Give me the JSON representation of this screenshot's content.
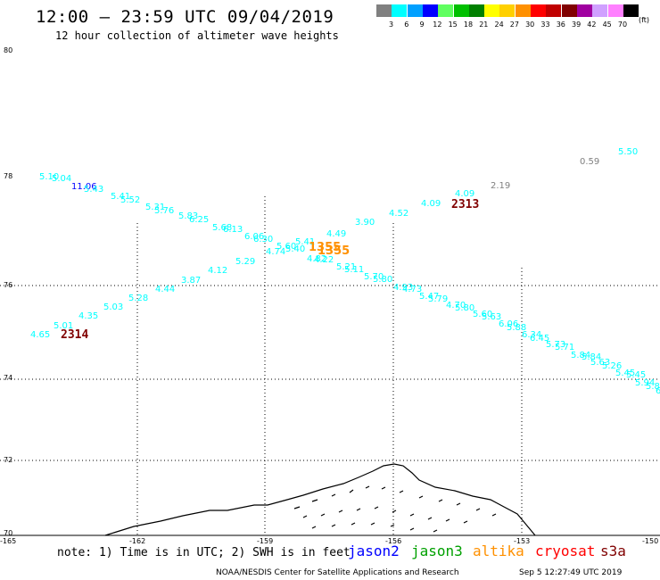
{
  "header": {
    "title": "12:00 – 23:59 UTC 09/04/2019",
    "subtitle": "12 hour collection of altimeter wave heights"
  },
  "colorbar": {
    "unit_label": "(ft)",
    "bins": [
      {
        "label": "3",
        "color": "#808080"
      },
      {
        "label": "6",
        "color": "#00ffff"
      },
      {
        "label": "9",
        "color": "#00a0ff"
      },
      {
        "label": "12",
        "color": "#0000ff"
      },
      {
        "label": "15",
        "color": "#60ff60"
      },
      {
        "label": "18",
        "color": "#00c000"
      },
      {
        "label": "21",
        "color": "#008000"
      },
      {
        "label": "24",
        "color": "#ffff00"
      },
      {
        "label": "27",
        "color": "#ffd000"
      },
      {
        "label": "30",
        "color": "#ff9000"
      },
      {
        "label": "33",
        "color": "#ff0000"
      },
      {
        "label": "36",
        "color": "#c00000"
      },
      {
        "label": "39",
        "color": "#800000"
      },
      {
        "label": "42",
        "color": "#a000a0"
      },
      {
        "label": "45",
        "color": "#d0a0ff"
      },
      {
        "label": "70",
        "color": "#ff80ff"
      },
      {
        "label": "",
        "color": "#000000"
      }
    ]
  },
  "axes": {
    "lat_labels": [
      "80",
      "78",
      "76",
      "74",
      "72",
      "70"
    ],
    "lon_labels": [
      "-165",
      "-162",
      "-159",
      "-156",
      "-153",
      "-150"
    ]
  },
  "observations": [
    {
      "text": "5.10",
      "color": "#00ffff"
    },
    {
      "text": "5.04",
      "color": "#00ffff"
    },
    {
      "text": "11.06",
      "color": "#0000ff"
    },
    {
      "text": "5.43",
      "color": "#00ffff"
    },
    {
      "text": "5.41",
      "color": "#00ffff"
    },
    {
      "text": "5.52",
      "color": "#00ffff"
    },
    {
      "text": "5.31",
      "color": "#00ffff"
    },
    {
      "text": "5.76",
      "color": "#00ffff"
    },
    {
      "text": "5.83",
      "color": "#00ffff"
    },
    {
      "text": "6.25",
      "color": "#00ffff"
    },
    {
      "text": "5.68",
      "color": "#00ffff"
    },
    {
      "text": "6.13",
      "color": "#00ffff"
    },
    {
      "text": "6.06",
      "color": "#00ffff"
    },
    {
      "text": "6.30",
      "color": "#00ffff"
    },
    {
      "text": "5.60",
      "color": "#00ffff"
    },
    {
      "text": "5.40",
      "color": "#00ffff"
    },
    {
      "text": "5.41",
      "color": "#00ffff"
    },
    {
      "text": "4.74",
      "color": "#00ffff"
    },
    {
      "text": "4.49",
      "color": "#00ffff"
    },
    {
      "text": "4.82",
      "color": "#00ffff"
    },
    {
      "text": "4.22",
      "color": "#00ffff"
    },
    {
      "text": "5.21",
      "color": "#00ffff"
    },
    {
      "text": "5.11",
      "color": "#00ffff"
    },
    {
      "text": "5.70",
      "color": "#00ffff"
    },
    {
      "text": "5.80",
      "color": "#00ffff"
    },
    {
      "text": "4.93",
      "color": "#00ffff"
    },
    {
      "text": "4.73",
      "color": "#00ffff"
    },
    {
      "text": "5.47",
      "color": "#00ffff"
    },
    {
      "text": "5.79",
      "color": "#00ffff"
    },
    {
      "text": "4.70",
      "color": "#00ffff"
    },
    {
      "text": "5.80",
      "color": "#00ffff"
    },
    {
      "text": "5.60",
      "color": "#00ffff"
    },
    {
      "text": "5.63",
      "color": "#00ffff"
    },
    {
      "text": "6.06",
      "color": "#00ffff"
    },
    {
      "text": "5.88",
      "color": "#00ffff"
    },
    {
      "text": "6.34",
      "color": "#00ffff"
    },
    {
      "text": "6.45",
      "color": "#00ffff"
    },
    {
      "text": "5.73",
      "color": "#00ffff"
    },
    {
      "text": "5.71",
      "color": "#00ffff"
    },
    {
      "text": "5.84",
      "color": "#00ffff"
    },
    {
      "text": "5.84",
      "color": "#00ffff"
    },
    {
      "text": "5.63",
      "color": "#00ffff"
    },
    {
      "text": "5.26",
      "color": "#00ffff"
    },
    {
      "text": "5.45",
      "color": "#00ffff"
    },
    {
      "text": "5.45",
      "color": "#00ffff"
    },
    {
      "text": "5.94",
      "color": "#00ffff"
    },
    {
      "text": "5.84",
      "color": "#00ffff"
    },
    {
      "text": "6",
      "color": "#00ffff"
    },
    {
      "text": "4.65",
      "color": "#00ffff"
    },
    {
      "text": "5.01",
      "color": "#00ffff"
    },
    {
      "text": "4.35",
      "color": "#00ffff"
    },
    {
      "text": "5.03",
      "color": "#00ffff"
    },
    {
      "text": "5.28",
      "color": "#00ffff"
    },
    {
      "text": "4.44",
      "color": "#00ffff"
    },
    {
      "text": "3.87",
      "color": "#00ffff"
    },
    {
      "text": "4.12",
      "color": "#00ffff"
    },
    {
      "text": "5.29",
      "color": "#00ffff"
    },
    {
      "text": "3.90",
      "color": "#00ffff"
    },
    {
      "text": "4.52",
      "color": "#00ffff"
    },
    {
      "text": "4.09",
      "color": "#00ffff"
    },
    {
      "text": "4.09",
      "color": "#00ffff"
    },
    {
      "text": "2.19",
      "color": "#808080"
    },
    {
      "text": "0.59",
      "color": "#808080"
    },
    {
      "text": "5.50",
      "color": "#00ffff"
    },
    {
      "text": "1355",
      "color": "#ff9000"
    },
    {
      "text": "1355",
      "color": "#ff9000"
    }
  ],
  "pass_labels": [
    {
      "text": "2314",
      "color": "#800000"
    },
    {
      "text": "2313",
      "color": "#800000"
    }
  ],
  "footer": {
    "note": "note: 1) Time is in UTC; 2) SWH is in feet",
    "satellites": [
      {
        "name": "jason2",
        "color": "#0000ff"
      },
      {
        "name": "jason3",
        "color": "#00a000"
      },
      {
        "name": "altika",
        "color": "#ff9000"
      },
      {
        "name": "cryosat",
        "color": "#ff0000"
      },
      {
        "name": "s3a",
        "color": "#800000"
      }
    ],
    "credit": "NOAA/NESDIS Center for Satellite Applications and Research",
    "timestamp": "Sep  5 12:27:49 UTC 2019"
  }
}
